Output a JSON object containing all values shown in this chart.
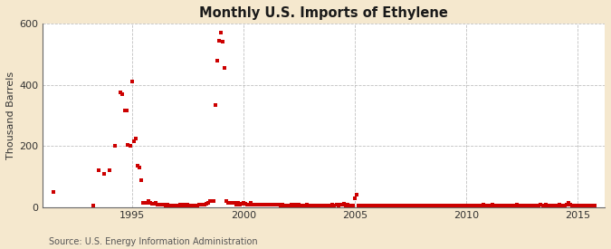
{
  "title": "Monthly U.S. Imports of Ethylene",
  "ylabel": "Thousand Barrels",
  "source_text": "Source: U.S. Energy Information Administration",
  "background_color": "#f5e8ce",
  "plot_background": "#ffffff",
  "marker_color": "#cc0000",
  "marker_size": 5,
  "xlim_start": 1991.0,
  "xlim_end": 2016.2,
  "ylim": [
    0,
    600
  ],
  "yticks": [
    0,
    200,
    400,
    600
  ],
  "xticks": [
    1995,
    2000,
    2005,
    2010,
    2015
  ],
  "data_points": [
    [
      1991.5,
      50
    ],
    [
      1993.25,
      5
    ],
    [
      1993.5,
      120
    ],
    [
      1993.75,
      110
    ],
    [
      1994.0,
      120
    ],
    [
      1994.25,
      200
    ],
    [
      1994.5,
      375
    ],
    [
      1994.58,
      370
    ],
    [
      1994.67,
      315
    ],
    [
      1994.75,
      315
    ],
    [
      1994.83,
      205
    ],
    [
      1994.92,
      200
    ],
    [
      1995.0,
      410
    ],
    [
      1995.08,
      215
    ],
    [
      1995.17,
      225
    ],
    [
      1995.25,
      135
    ],
    [
      1995.33,
      130
    ],
    [
      1995.42,
      90
    ],
    [
      1995.5,
      15
    ],
    [
      1995.58,
      15
    ],
    [
      1995.67,
      15
    ],
    [
      1995.75,
      20
    ],
    [
      1995.83,
      15
    ],
    [
      1995.92,
      12
    ],
    [
      1996.0,
      12
    ],
    [
      1996.08,
      15
    ],
    [
      1996.17,
      10
    ],
    [
      1996.25,
      10
    ],
    [
      1996.33,
      8
    ],
    [
      1996.42,
      8
    ],
    [
      1996.5,
      5
    ],
    [
      1996.58,
      8
    ],
    [
      1996.67,
      5
    ],
    [
      1996.75,
      5
    ],
    [
      1996.83,
      5
    ],
    [
      1996.92,
      5
    ],
    [
      1997.0,
      5
    ],
    [
      1997.08,
      5
    ],
    [
      1997.17,
      8
    ],
    [
      1997.25,
      5
    ],
    [
      1997.33,
      8
    ],
    [
      1997.42,
      5
    ],
    [
      1997.5,
      8
    ],
    [
      1997.58,
      5
    ],
    [
      1997.67,
      5
    ],
    [
      1997.75,
      5
    ],
    [
      1997.83,
      5
    ],
    [
      1997.92,
      5
    ],
    [
      1998.0,
      10
    ],
    [
      1998.08,
      8
    ],
    [
      1998.17,
      8
    ],
    [
      1998.25,
      10
    ],
    [
      1998.33,
      12
    ],
    [
      1998.42,
      15
    ],
    [
      1998.5,
      20
    ],
    [
      1998.58,
      20
    ],
    [
      1998.67,
      20
    ],
    [
      1998.75,
      335
    ],
    [
      1998.83,
      480
    ],
    [
      1998.92,
      545
    ],
    [
      1999.0,
      570
    ],
    [
      1999.08,
      540
    ],
    [
      1999.17,
      455
    ],
    [
      1999.25,
      20
    ],
    [
      1999.33,
      15
    ],
    [
      1999.42,
      15
    ],
    [
      1999.5,
      15
    ],
    [
      1999.58,
      15
    ],
    [
      1999.67,
      10
    ],
    [
      1999.75,
      15
    ],
    [
      1999.83,
      10
    ],
    [
      1999.92,
      12
    ],
    [
      2000.0,
      15
    ],
    [
      2000.08,
      12
    ],
    [
      2000.17,
      10
    ],
    [
      2000.25,
      10
    ],
    [
      2000.33,
      15
    ],
    [
      2000.42,
      10
    ],
    [
      2000.5,
      8
    ],
    [
      2000.58,
      10
    ],
    [
      2000.67,
      8
    ],
    [
      2000.75,
      8
    ],
    [
      2000.83,
      10
    ],
    [
      2000.92,
      8
    ],
    [
      2001.0,
      10
    ],
    [
      2001.08,
      8
    ],
    [
      2001.17,
      8
    ],
    [
      2001.25,
      8
    ],
    [
      2001.33,
      10
    ],
    [
      2001.42,
      8
    ],
    [
      2001.5,
      8
    ],
    [
      2001.58,
      8
    ],
    [
      2001.67,
      5
    ],
    [
      2001.75,
      8
    ],
    [
      2001.83,
      5
    ],
    [
      2001.92,
      5
    ],
    [
      2002.0,
      5
    ],
    [
      2002.08,
      5
    ],
    [
      2002.17,
      8
    ],
    [
      2002.25,
      5
    ],
    [
      2002.33,
      10
    ],
    [
      2002.42,
      5
    ],
    [
      2002.5,
      8
    ],
    [
      2002.58,
      5
    ],
    [
      2002.67,
      5
    ],
    [
      2002.75,
      5
    ],
    [
      2002.83,
      8
    ],
    [
      2002.92,
      5
    ],
    [
      2003.0,
      5
    ],
    [
      2003.08,
      5
    ],
    [
      2003.17,
      5
    ],
    [
      2003.25,
      5
    ],
    [
      2003.33,
      5
    ],
    [
      2003.42,
      5
    ],
    [
      2003.5,
      5
    ],
    [
      2003.58,
      5
    ],
    [
      2003.67,
      5
    ],
    [
      2003.75,
      5
    ],
    [
      2003.83,
      5
    ],
    [
      2003.92,
      5
    ],
    [
      2004.0,
      8
    ],
    [
      2004.08,
      5
    ],
    [
      2004.17,
      8
    ],
    [
      2004.25,
      5
    ],
    [
      2004.33,
      8
    ],
    [
      2004.42,
      10
    ],
    [
      2004.5,
      12
    ],
    [
      2004.58,
      5
    ],
    [
      2004.67,
      8
    ],
    [
      2004.75,
      5
    ],
    [
      2004.83,
      5
    ],
    [
      2004.92,
      5
    ],
    [
      2005.0,
      30
    ],
    [
      2005.08,
      42
    ],
    [
      2005.17,
      5
    ],
    [
      2005.25,
      5
    ],
    [
      2005.33,
      5
    ],
    [
      2005.42,
      5
    ],
    [
      2005.5,
      5
    ],
    [
      2005.58,
      5
    ],
    [
      2005.67,
      5
    ],
    [
      2005.75,
      5
    ],
    [
      2005.83,
      5
    ],
    [
      2005.92,
      5
    ],
    [
      2006.0,
      5
    ],
    [
      2006.08,
      5
    ],
    [
      2006.17,
      5
    ],
    [
      2006.25,
      5
    ],
    [
      2006.33,
      5
    ],
    [
      2006.42,
      5
    ],
    [
      2006.5,
      5
    ],
    [
      2006.58,
      5
    ],
    [
      2006.67,
      5
    ],
    [
      2006.75,
      5
    ],
    [
      2006.83,
      5
    ],
    [
      2006.92,
      5
    ],
    [
      2007.0,
      5
    ],
    [
      2007.08,
      5
    ],
    [
      2007.17,
      5
    ],
    [
      2007.25,
      5
    ],
    [
      2007.33,
      5
    ],
    [
      2007.42,
      5
    ],
    [
      2007.5,
      5
    ],
    [
      2007.58,
      5
    ],
    [
      2007.67,
      5
    ],
    [
      2007.75,
      5
    ],
    [
      2007.83,
      5
    ],
    [
      2007.92,
      5
    ],
    [
      2008.0,
      5
    ],
    [
      2008.08,
      5
    ],
    [
      2008.17,
      5
    ],
    [
      2008.25,
      5
    ],
    [
      2008.33,
      5
    ],
    [
      2008.42,
      5
    ],
    [
      2008.5,
      5
    ],
    [
      2008.58,
      5
    ],
    [
      2008.67,
      5
    ],
    [
      2008.75,
      5
    ],
    [
      2008.83,
      5
    ],
    [
      2008.92,
      5
    ],
    [
      2009.0,
      5
    ],
    [
      2009.08,
      5
    ],
    [
      2009.17,
      5
    ],
    [
      2009.25,
      5
    ],
    [
      2009.33,
      5
    ],
    [
      2009.42,
      5
    ],
    [
      2009.5,
      5
    ],
    [
      2009.58,
      5
    ],
    [
      2009.67,
      5
    ],
    [
      2009.75,
      5
    ],
    [
      2009.83,
      5
    ],
    [
      2009.92,
      5
    ],
    [
      2010.0,
      5
    ],
    [
      2010.08,
      5
    ],
    [
      2010.17,
      5
    ],
    [
      2010.25,
      5
    ],
    [
      2010.33,
      5
    ],
    [
      2010.42,
      5
    ],
    [
      2010.5,
      5
    ],
    [
      2010.58,
      5
    ],
    [
      2010.67,
      5
    ],
    [
      2010.75,
      8
    ],
    [
      2010.83,
      5
    ],
    [
      2010.92,
      5
    ],
    [
      2011.0,
      5
    ],
    [
      2011.08,
      5
    ],
    [
      2011.17,
      8
    ],
    [
      2011.25,
      5
    ],
    [
      2011.33,
      5
    ],
    [
      2011.42,
      5
    ],
    [
      2011.5,
      5
    ],
    [
      2011.58,
      5
    ],
    [
      2011.67,
      5
    ],
    [
      2011.75,
      5
    ],
    [
      2011.83,
      5
    ],
    [
      2011.92,
      5
    ],
    [
      2012.0,
      5
    ],
    [
      2012.08,
      5
    ],
    [
      2012.17,
      5
    ],
    [
      2012.25,
      8
    ],
    [
      2012.33,
      5
    ],
    [
      2012.42,
      5
    ],
    [
      2012.5,
      5
    ],
    [
      2012.58,
      5
    ],
    [
      2012.67,
      5
    ],
    [
      2012.75,
      5
    ],
    [
      2012.83,
      5
    ],
    [
      2012.92,
      5
    ],
    [
      2013.0,
      5
    ],
    [
      2013.08,
      5
    ],
    [
      2013.17,
      5
    ],
    [
      2013.25,
      5
    ],
    [
      2013.33,
      8
    ],
    [
      2013.42,
      5
    ],
    [
      2013.5,
      5
    ],
    [
      2013.58,
      8
    ],
    [
      2013.67,
      5
    ],
    [
      2013.75,
      5
    ],
    [
      2013.83,
      5
    ],
    [
      2013.92,
      5
    ],
    [
      2014.0,
      5
    ],
    [
      2014.08,
      5
    ],
    [
      2014.17,
      8
    ],
    [
      2014.25,
      5
    ],
    [
      2014.33,
      5
    ],
    [
      2014.42,
      5
    ],
    [
      2014.5,
      10
    ],
    [
      2014.58,
      15
    ],
    [
      2014.67,
      8
    ],
    [
      2014.75,
      5
    ],
    [
      2014.83,
      5
    ],
    [
      2014.92,
      5
    ],
    [
      2015.0,
      5
    ],
    [
      2015.08,
      5
    ],
    [
      2015.17,
      5
    ],
    [
      2015.25,
      5
    ],
    [
      2015.33,
      5
    ],
    [
      2015.42,
      5
    ],
    [
      2015.5,
      5
    ],
    [
      2015.58,
      5
    ],
    [
      2015.67,
      5
    ],
    [
      2015.75,
      5
    ]
  ]
}
